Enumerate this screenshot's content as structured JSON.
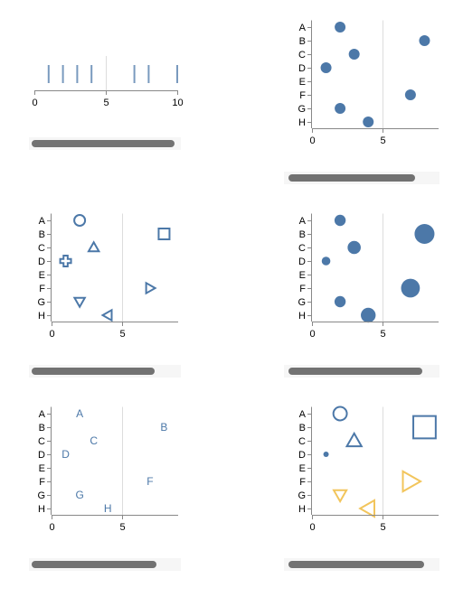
{
  "colors": {
    "primary": "#4c78a8",
    "secondary": "#f2c55c",
    "axis": "#888888",
    "grid": "#dddddd",
    "text": "#000000"
  },
  "chart_data": [
    {
      "type": "strip",
      "xlim": [
        0,
        10
      ],
      "x_ticks": [
        "0",
        "5",
        "10"
      ],
      "values": [
        1,
        2,
        3,
        4,
        7,
        8,
        10
      ]
    },
    {
      "type": "scatter",
      "mark": "circle",
      "categories": [
        "A",
        "B",
        "C",
        "D",
        "E",
        "F",
        "G",
        "H"
      ],
      "xlim": [
        0,
        9
      ],
      "x_ticks": [
        "0",
        "5"
      ],
      "points": [
        {
          "y": "A",
          "x": 2
        },
        {
          "y": "B",
          "x": 8
        },
        {
          "y": "C",
          "x": 3
        },
        {
          "y": "D",
          "x": 1
        },
        {
          "y": "F",
          "x": 7
        },
        {
          "y": "G",
          "x": 2
        },
        {
          "y": "H",
          "x": 4
        }
      ]
    },
    {
      "type": "scatter",
      "mark": "shape",
      "categories": [
        "A",
        "B",
        "C",
        "D",
        "E",
        "F",
        "G",
        "H"
      ],
      "xlim": [
        0,
        9
      ],
      "x_ticks": [
        "0",
        "5"
      ],
      "points": [
        {
          "y": "A",
          "x": 2,
          "shape": "circle"
        },
        {
          "y": "B",
          "x": 8,
          "shape": "square"
        },
        {
          "y": "C",
          "x": 3,
          "shape": "triangle-up"
        },
        {
          "y": "D",
          "x": 1,
          "shape": "cross"
        },
        {
          "y": "F",
          "x": 7,
          "shape": "triangle-right"
        },
        {
          "y": "G",
          "x": 2,
          "shape": "triangle-down"
        },
        {
          "y": "H",
          "x": 4,
          "shape": "triangle-left"
        }
      ]
    },
    {
      "type": "scatter",
      "mark": "bubble",
      "categories": [
        "A",
        "B",
        "C",
        "D",
        "E",
        "F",
        "G",
        "H"
      ],
      "xlim": [
        0,
        9
      ],
      "x_ticks": [
        "0",
        "5"
      ],
      "points": [
        {
          "y": "A",
          "x": 2,
          "size": 2
        },
        {
          "y": "B",
          "x": 8,
          "size": 8
        },
        {
          "y": "C",
          "x": 3,
          "size": 3
        },
        {
          "y": "D",
          "x": 1,
          "size": 1
        },
        {
          "y": "F",
          "x": 7,
          "size": 7
        },
        {
          "y": "G",
          "x": 2,
          "size": 2
        },
        {
          "y": "H",
          "x": 4,
          "size": 4
        }
      ]
    },
    {
      "type": "scatter",
      "mark": "text",
      "categories": [
        "A",
        "B",
        "C",
        "D",
        "E",
        "F",
        "G",
        "H"
      ],
      "xlim": [
        0,
        9
      ],
      "x_ticks": [
        "0",
        "5"
      ],
      "points": [
        {
          "y": "A",
          "x": 2,
          "label": "A"
        },
        {
          "y": "B",
          "x": 8,
          "label": "B"
        },
        {
          "y": "C",
          "x": 3,
          "label": "C"
        },
        {
          "y": "D",
          "x": 1,
          "label": "D"
        },
        {
          "y": "F",
          "x": 7,
          "label": "F"
        },
        {
          "y": "G",
          "x": 2,
          "label": "G"
        },
        {
          "y": "H",
          "x": 4,
          "label": "H"
        }
      ]
    },
    {
      "type": "scatter",
      "mark": "shape-size-color",
      "categories": [
        "A",
        "B",
        "C",
        "D",
        "E",
        "F",
        "G",
        "H"
      ],
      "xlim": [
        0,
        9
      ],
      "x_ticks": [
        "0",
        "5"
      ],
      "points": [
        {
          "y": "A",
          "x": 2,
          "size": 2,
          "shape": "circle",
          "color": "primary"
        },
        {
          "y": "B",
          "x": 8,
          "size": 8,
          "shape": "square",
          "color": "primary"
        },
        {
          "y": "C",
          "x": 3,
          "size": 3,
          "shape": "triangle-up",
          "color": "primary"
        },
        {
          "y": "D",
          "x": 1,
          "size": 1,
          "shape": "dot",
          "color": "primary"
        },
        {
          "y": "F",
          "x": 7,
          "size": 7,
          "shape": "triangle-right",
          "color": "secondary"
        },
        {
          "y": "G",
          "x": 2,
          "size": 2,
          "shape": "triangle-down",
          "color": "secondary"
        },
        {
          "y": "H",
          "x": 4,
          "size": 4,
          "shape": "triangle-left",
          "color": "secondary"
        }
      ]
    }
  ]
}
